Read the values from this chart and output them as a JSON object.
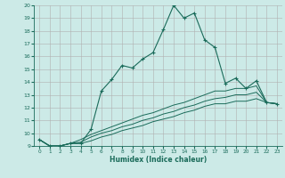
{
  "xlabel": "Humidex (Indice chaleur)",
  "bg_color": "#cceae7",
  "grid_color": "#b0b0b0",
  "line_color": "#1a6b5a",
  "xlim": [
    -0.5,
    23.5
  ],
  "ylim": [
    9,
    20
  ],
  "xticks": [
    0,
    1,
    2,
    3,
    4,
    5,
    6,
    7,
    8,
    9,
    10,
    11,
    12,
    13,
    14,
    15,
    16,
    17,
    18,
    19,
    20,
    21,
    22,
    23
  ],
  "yticks": [
    9,
    10,
    11,
    12,
    13,
    14,
    15,
    16,
    17,
    18,
    19,
    20
  ],
  "main_x": [
    0,
    1,
    2,
    3,
    4,
    5,
    6,
    7,
    8,
    9,
    10,
    11,
    12,
    13,
    14,
    15,
    16,
    17,
    18,
    19,
    20,
    21,
    22,
    23
  ],
  "main_y": [
    9.5,
    9.0,
    9.0,
    9.2,
    9.2,
    10.3,
    13.3,
    14.2,
    15.3,
    15.1,
    15.8,
    16.3,
    18.1,
    20.0,
    19.0,
    19.4,
    17.3,
    16.7,
    13.9,
    14.3,
    13.5,
    14.1,
    12.4,
    12.3
  ],
  "line1_x": [
    0,
    1,
    2,
    3,
    4,
    5,
    6,
    7,
    8,
    9,
    10,
    11,
    12,
    13,
    14,
    15,
    16,
    17,
    18,
    19,
    20,
    21,
    22,
    23
  ],
  "line1_y": [
    9.5,
    9.0,
    9.0,
    9.2,
    9.5,
    9.9,
    10.2,
    10.5,
    10.8,
    11.1,
    11.4,
    11.6,
    11.9,
    12.2,
    12.4,
    12.7,
    13.0,
    13.3,
    13.3,
    13.5,
    13.5,
    13.7,
    12.4,
    12.3
  ],
  "line2_x": [
    0,
    1,
    2,
    3,
    4,
    5,
    6,
    7,
    8,
    9,
    10,
    11,
    12,
    13,
    14,
    15,
    16,
    17,
    18,
    19,
    20,
    21,
    22,
    23
  ],
  "line2_y": [
    9.5,
    9.0,
    9.0,
    9.2,
    9.3,
    9.7,
    10.0,
    10.2,
    10.5,
    10.7,
    11.0,
    11.2,
    11.5,
    11.7,
    12.0,
    12.2,
    12.5,
    12.7,
    12.8,
    13.0,
    13.0,
    13.2,
    12.4,
    12.3
  ],
  "line3_x": [
    0,
    1,
    2,
    3,
    4,
    5,
    6,
    7,
    8,
    9,
    10,
    11,
    12,
    13,
    14,
    15,
    16,
    17,
    18,
    19,
    20,
    21,
    22,
    23
  ],
  "line3_y": [
    9.5,
    9.0,
    9.0,
    9.2,
    9.2,
    9.4,
    9.7,
    9.9,
    10.2,
    10.4,
    10.6,
    10.9,
    11.1,
    11.3,
    11.6,
    11.8,
    12.1,
    12.3,
    12.3,
    12.5,
    12.5,
    12.7,
    12.4,
    12.3
  ]
}
